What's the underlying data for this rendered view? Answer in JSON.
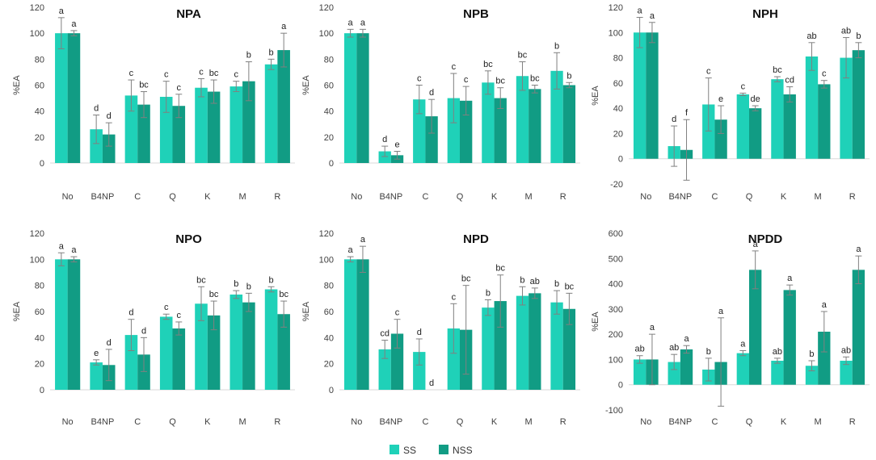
{
  "legend": [
    "SS",
    "NSS"
  ],
  "colors": {
    "SS": "#1fd1b8",
    "NSS": "#119c84",
    "axis": "#d9d9d9",
    "error": "#808080"
  },
  "chart_data": [
    {
      "type": "bar",
      "title": "NPA",
      "ylabel": "%EA",
      "categories": [
        "No",
        "B4NP",
        "C",
        "Q",
        "K",
        "M",
        "R"
      ],
      "ylim": [
        0,
        120
      ],
      "yticks": [
        "0",
        "20",
        "40",
        "60",
        "80",
        "100",
        "120"
      ],
      "series": [
        {
          "name": "SS",
          "values": [
            100,
            26,
            52,
            51,
            58,
            59,
            76
          ],
          "errors": [
            12,
            11,
            12,
            12,
            7,
            4,
            4
          ],
          "labels": [
            "a",
            "d",
            "c",
            "c",
            "c",
            "c",
            "b"
          ]
        },
        {
          "name": "NSS",
          "values": [
            100,
            22,
            45,
            44,
            55,
            63,
            87
          ],
          "errors": [
            2,
            9,
            10,
            9,
            9,
            15,
            13
          ],
          "labels": [
            "a",
            "d",
            "bc",
            "c",
            "bc",
            "b",
            "a"
          ]
        }
      ]
    },
    {
      "type": "bar",
      "title": "NPB",
      "ylabel": "%EA",
      "categories": [
        "No",
        "B4NP",
        "C",
        "Q",
        "K",
        "M",
        "R"
      ],
      "ylim": [
        0,
        120
      ],
      "yticks": [
        "0",
        "20",
        "40",
        "60",
        "80",
        "100",
        "120"
      ],
      "series": [
        {
          "name": "SS",
          "values": [
            100,
            9,
            49,
            50,
            62,
            67,
            71
          ],
          "errors": [
            3,
            4,
            11,
            19,
            9,
            11,
            14
          ],
          "labels": [
            "a",
            "d",
            "c",
            "c",
            "bc",
            "bc",
            "b"
          ]
        },
        {
          "name": "NSS",
          "values": [
            100,
            6,
            36,
            48,
            50,
            57,
            60
          ],
          "errors": [
            3,
            3,
            13,
            11,
            8,
            3,
            2
          ],
          "labels": [
            "a",
            "e",
            "d",
            "c",
            "bc",
            "bc",
            "b"
          ]
        }
      ]
    },
    {
      "type": "bar",
      "title": "NPH",
      "ylabel": "%EA",
      "categories": [
        "No",
        "B4NP",
        "C",
        "Q",
        "K",
        "M",
        "R"
      ],
      "ylim": [
        -20,
        120
      ],
      "yticks": [
        "-20",
        "0",
        "20",
        "40",
        "60",
        "80",
        "100",
        "120"
      ],
      "series": [
        {
          "name": "SS",
          "values": [
            100,
            10,
            43,
            51,
            63,
            81,
            80
          ],
          "errors": [
            12,
            16,
            21,
            1,
            2,
            11,
            16
          ],
          "labels": [
            "a",
            "d",
            "c",
            "c",
            "bc",
            "ab",
            "ab"
          ]
        },
        {
          "name": "NSS",
          "values": [
            100,
            7,
            31,
            40,
            51,
            59,
            86
          ],
          "errors": [
            8,
            24,
            11,
            2,
            6,
            3,
            6
          ],
          "labels": [
            "a",
            "f",
            "e",
            "de",
            "cd",
            "c",
            "b"
          ]
        }
      ]
    },
    {
      "type": "bar",
      "title": "NPO",
      "ylabel": "%EA",
      "categories": [
        "No",
        "B4NP",
        "C",
        "Q",
        "K",
        "M",
        "R"
      ],
      "ylim": [
        0,
        120
      ],
      "yticks": [
        "0",
        "20",
        "40",
        "60",
        "80",
        "100",
        "120"
      ],
      "series": [
        {
          "name": "SS",
          "values": [
            100,
            21,
            42,
            56,
            66,
            73,
            77
          ],
          "errors": [
            5,
            2,
            12,
            2,
            13,
            3,
            2
          ],
          "labels": [
            "a",
            "e",
            "d",
            "c",
            "bc",
            "b",
            "b"
          ]
        },
        {
          "name": "NSS",
          "values": [
            100,
            19,
            27,
            47,
            57,
            67,
            58
          ],
          "errors": [
            2,
            12,
            13,
            5,
            11,
            7,
            10
          ],
          "labels": [
            "a",
            "d",
            "d",
            "c",
            "bc",
            "b",
            "bc"
          ]
        }
      ]
    },
    {
      "type": "bar",
      "title": "NPD",
      "ylabel": "%EA",
      "categories": [
        "No",
        "B4NP",
        "C",
        "Q",
        "K",
        "M",
        "R"
      ],
      "ylim": [
        0,
        120
      ],
      "yticks": [
        "0",
        "20",
        "40",
        "60",
        "80",
        "100",
        "120"
      ],
      "series": [
        {
          "name": "SS",
          "values": [
            100,
            31,
            29,
            47,
            63,
            72,
            67
          ],
          "errors": [
            2,
            7,
            10,
            19,
            6,
            7,
            9
          ],
          "labels": [
            "a",
            "cd",
            "d",
            "c",
            "b",
            "b",
            "b"
          ]
        },
        {
          "name": "NSS",
          "values": [
            100,
            43,
            0,
            46,
            68,
            74,
            62
          ],
          "errors": [
            10,
            11,
            0,
            34,
            20,
            4,
            12
          ],
          "labels": [
            "a",
            "c",
            "d",
            "bc",
            "bc",
            "ab",
            "bc"
          ]
        }
      ]
    },
    {
      "type": "bar",
      "title": "NPDD",
      "ylabel": "%EA",
      "categories": [
        "No",
        "B4NP",
        "C",
        "Q",
        "K",
        "M",
        "R"
      ],
      "ylim": [
        -100,
        600
      ],
      "yticks": [
        "-100",
        "0",
        "100",
        "200",
        "300",
        "400",
        "500",
        "600"
      ],
      "series": [
        {
          "name": "SS",
          "values": [
            100,
            90,
            60,
            125,
            95,
            75,
            95
          ],
          "errors": [
            15,
            30,
            45,
            10,
            10,
            20,
            15
          ],
          "labels": [
            "ab",
            "ab",
            "b",
            "a",
            "ab",
            "b",
            "ab"
          ]
        },
        {
          "name": "NSS",
          "values": [
            100,
            140,
            90,
            455,
            375,
            210,
            455
          ],
          "errors": [
            100,
            15,
            175,
            75,
            20,
            80,
            55
          ],
          "labels": [
            "a",
            "a",
            "a",
            "a",
            "a",
            "a",
            "a"
          ]
        }
      ]
    }
  ]
}
